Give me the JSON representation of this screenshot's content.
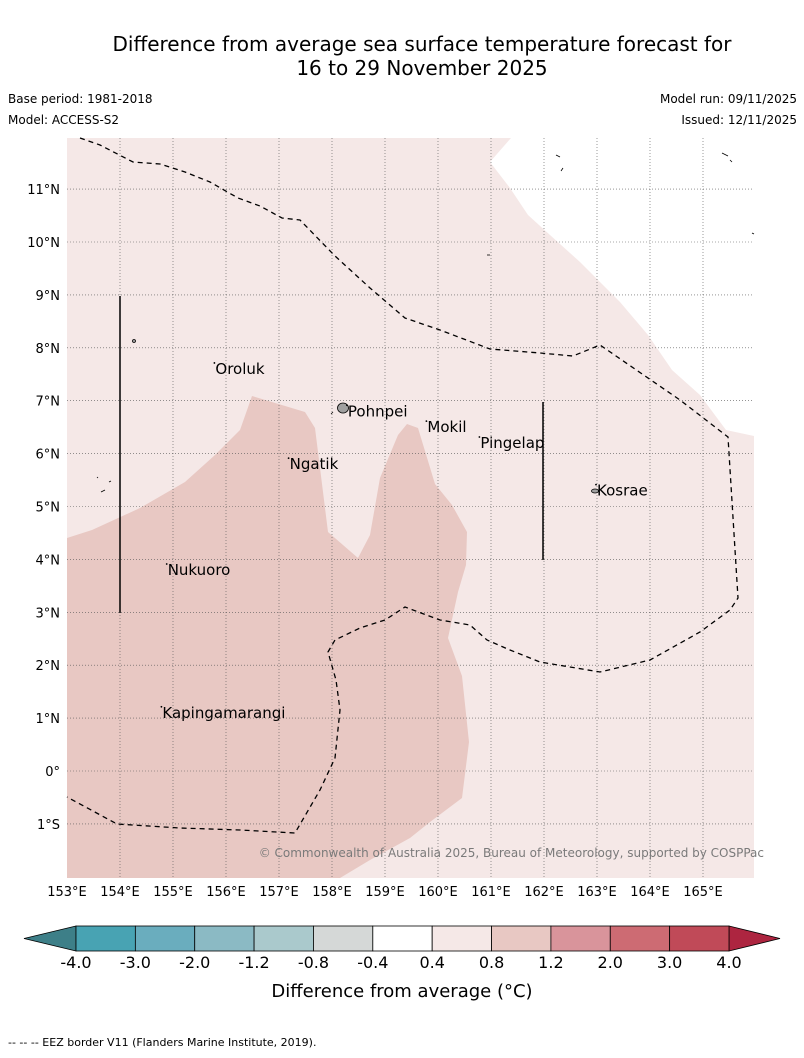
{
  "title": {
    "line1": "Difference from average sea surface temperature forecast for",
    "line2": "16 to 29 November 2025"
  },
  "meta": {
    "base_period": "Base period: 1981-2018",
    "model": "Model: ACCESS-S2",
    "model_run": "Model run: 09/11/2025",
    "issued": "Issued: 12/11/2025"
  },
  "map": {
    "lon_range": [
      153,
      166
    ],
    "lat_range": [
      -2,
      12
    ],
    "lat_labels": [
      "11°N",
      "10°N",
      "9°N",
      "8°N",
      "7°N",
      "6°N",
      "5°N",
      "4°N",
      "3°N",
      "2°N",
      "1°N",
      "0°",
      "1°S"
    ],
    "lon_labels": [
      "153°E",
      "154°E",
      "155°E",
      "156°E",
      "157°E",
      "158°E",
      "159°E",
      "160°E",
      "161°E",
      "162°E",
      "163°E",
      "164°E",
      "165°E"
    ],
    "places": [
      {
        "name": "Oroluk",
        "lon": 155.8,
        "lat": 7.6
      },
      {
        "name": "Pohnpei",
        "lon": 158.3,
        "lat": 6.8
      },
      {
        "name": "Mokil",
        "lon": 159.8,
        "lat": 6.5
      },
      {
        "name": "Pingelap",
        "lon": 160.8,
        "lat": 6.2
      },
      {
        "name": "Ngatik",
        "lon": 157.2,
        "lat": 5.8
      },
      {
        "name": "Kosrae",
        "lon": 163.0,
        "lat": 5.3
      },
      {
        "name": "Nukuoro",
        "lon": 154.9,
        "lat": 3.8
      },
      {
        "name": "Kapingamarangi",
        "lon": 154.8,
        "lat": 1.1
      }
    ],
    "copyright": "© Commonwealth of Australia 2025, Bureau of Meteorology, supported by COSPPac",
    "colors": {
      "anomaly_0_4_to_0_8": "#f5e8e7",
      "anomaly_0_8_to_1_2": "#e8c8c3",
      "no_data": "#ffffff"
    }
  },
  "colorbar": {
    "ticks": [
      "-4.0",
      "-3.0",
      "-2.0",
      "-1.2",
      "-0.8",
      "-0.4",
      "0.4",
      "0.8",
      "1.2",
      "2.0",
      "3.0",
      "4.0"
    ],
    "colors": [
      "#48a3b3",
      "#6aadbe",
      "#8bbac4",
      "#aac9cc",
      "#d5d8d7",
      "#ffffff",
      "#f5e8e7",
      "#e8c8c3",
      "#d9949b",
      "#cd6b73",
      "#c04a58"
    ],
    "under_color": "#3d7f88",
    "over_color": "#ad2540",
    "label": "Difference from average (°C)"
  },
  "footnote": "--  --  -- EEZ border V11 (Flanders Marine Institute, 2019)."
}
